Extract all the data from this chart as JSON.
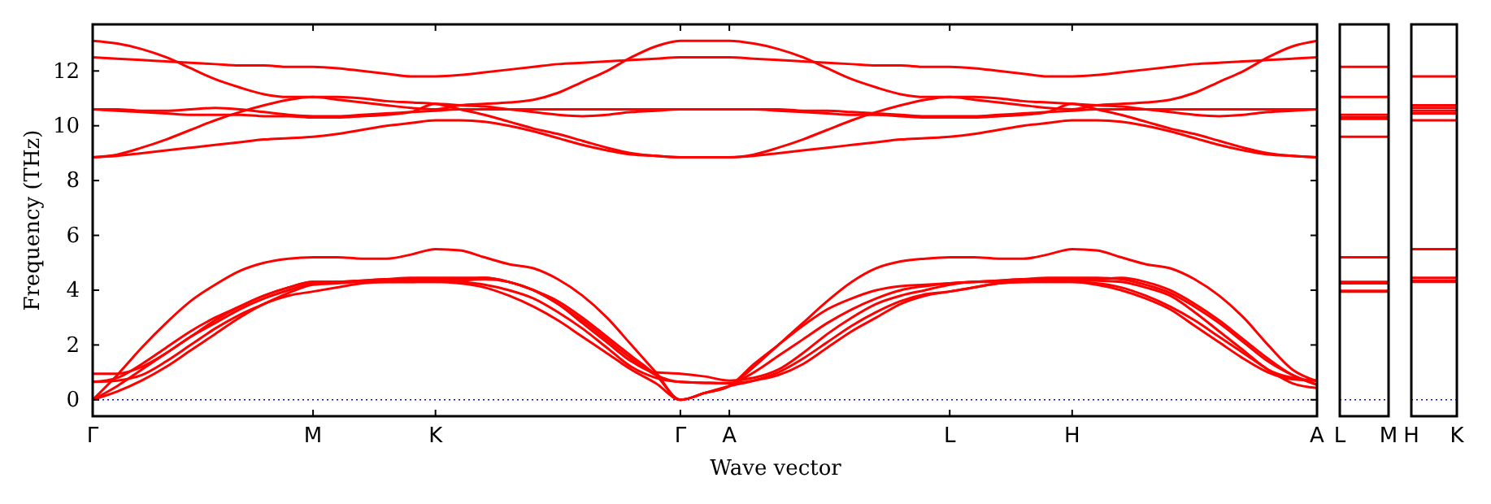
{
  "chart_data": [
    {
      "type": "line",
      "ylabel": "Frequency (THz)",
      "xlabel": "Wave vector",
      "line_style": "solid",
      "grid": false,
      "categories": [
        "Γ",
        null,
        null,
        null,
        null,
        null,
        null,
        null,
        null,
        "M",
        null,
        null,
        null,
        null,
        "K",
        null,
        null,
        null,
        null,
        null,
        null,
        null,
        null,
        null,
        "Γ",
        null,
        "A",
        null,
        null,
        null,
        null,
        null,
        null,
        null,
        null,
        "L",
        null,
        null,
        null,
        null,
        "H",
        null,
        null,
        null,
        null,
        null,
        null,
        null,
        null,
        null,
        "A"
      ],
      "ylim": [
        -0.6,
        13.7
      ],
      "yticks": [
        0,
        2,
        4,
        6,
        8,
        10,
        12
      ],
      "ref_lines": [
        {
          "axis": "y",
          "value": 0,
          "color": "#0000ff",
          "line_style": "dotted"
        }
      ],
      "series": [
        {
          "color": "#ff0000",
          "values": [
            0,
            0.3,
            0.7,
            1.2,
            1.8,
            2.4,
            3.0,
            3.5,
            3.8,
            3.95,
            4.1,
            4.25,
            4.3,
            4.3,
            4.3,
            4.25,
            4.1,
            3.8,
            3.4,
            2.9,
            2.3,
            1.7,
            1.1,
            0.6,
            0,
            0.25,
            0.5,
            1.2,
            2.0,
            2.8,
            3.6,
            4.3,
            4.8,
            5.05,
            5.15,
            5.2,
            5.2,
            5.15,
            5.15,
            5.3,
            5.5,
            5.45,
            5.2,
            4.95,
            4.8,
            4.4,
            3.8,
            3.0,
            2.0,
            1.1,
            0.68
          ]
        },
        {
          "color": "#ff0000",
          "values": [
            0,
            0.5,
            1.1,
            1.7,
            2.3,
            2.8,
            3.3,
            3.7,
            4.0,
            4.25,
            4.3,
            4.35,
            4.4,
            4.4,
            4.4,
            4.4,
            4.45,
            4.3,
            4.0,
            3.5,
            2.9,
            2.2,
            1.5,
            0.9,
            0.65,
            0.62,
            0.6,
            1.0,
            1.6,
            2.2,
            2.8,
            3.3,
            3.7,
            4.0,
            4.15,
            4.25,
            4.3,
            4.35,
            4.4,
            4.45,
            4.45,
            4.45,
            4.4,
            4.2,
            3.9,
            3.4,
            2.8,
            2.1,
            1.4,
            0.9,
            0.55
          ]
        },
        {
          "color": "#ff0000",
          "values": [
            0.65,
            0.8,
            1.3,
            1.9,
            2.5,
            3.0,
            3.4,
            3.8,
            4.1,
            4.3,
            4.3,
            4.35,
            4.4,
            4.45,
            4.45,
            4.45,
            4.45,
            4.3,
            4.0,
            3.6,
            3.0,
            2.3,
            1.6,
            0.9,
            0,
            0.25,
            0.5,
            1.3,
            2.0,
            2.7,
            3.3,
            3.7,
            4.0,
            4.15,
            4.2,
            4.25,
            4.3,
            4.35,
            4.4,
            4.4,
            4.4,
            4.4,
            4.45,
            4.3,
            4.0,
            3.5,
            2.9,
            2.2,
            1.5,
            0.9,
            0.55
          ]
        },
        {
          "color": "#ff0000",
          "values": [
            0.95,
            0.95,
            1.2,
            1.7,
            2.3,
            2.9,
            3.4,
            3.8,
            4.1,
            4.3,
            4.3,
            4.3,
            4.3,
            4.3,
            4.3,
            4.35,
            4.4,
            4.3,
            4.0,
            3.5,
            2.8,
            2.1,
            1.4,
            1.0,
            0.95,
            0.85,
            0.7,
            0.8,
            1.1,
            1.7,
            2.4,
            3.0,
            3.5,
            3.8,
            4.0,
            4.2,
            4.3,
            4.3,
            4.3,
            4.35,
            4.35,
            4.35,
            4.3,
            4.1,
            3.8,
            3.2,
            2.5,
            1.8,
            1.1,
            0.8,
            0.7
          ]
        },
        {
          "color": "#ff0000",
          "values": [
            0.65,
            0.7,
            0.9,
            1.4,
            2.0,
            2.6,
            3.1,
            3.5,
            3.9,
            4.2,
            4.25,
            4.3,
            4.3,
            4.3,
            4.35,
            4.3,
            4.2,
            4.0,
            3.7,
            3.2,
            2.6,
            1.9,
            1.2,
            0.8,
            0.65,
            0.62,
            0.6,
            0.7,
            0.9,
            1.3,
            1.9,
            2.5,
            3.0,
            3.5,
            3.8,
            3.95,
            4.1,
            4.25,
            4.3,
            4.3,
            4.3,
            4.2,
            4.0,
            3.7,
            3.3,
            2.7,
            2.1,
            1.5,
            1.0,
            0.75,
            0.7
          ]
        },
        {
          "color": "#ff0000",
          "values": [
            0,
            0.9,
            1.9,
            2.8,
            3.6,
            4.2,
            4.7,
            5.0,
            5.15,
            5.2,
            5.2,
            5.15,
            5.15,
            5.3,
            5.5,
            5.45,
            5.2,
            4.95,
            4.8,
            4.4,
            3.8,
            3.0,
            2.0,
            1.0,
            0,
            0.25,
            0.5,
            0.7,
            1.0,
            1.5,
            2.1,
            2.7,
            3.2,
            3.6,
            3.85,
            3.95,
            4.1,
            4.25,
            4.3,
            4.3,
            4.3,
            4.25,
            4.1,
            3.8,
            3.4,
            2.9,
            2.3,
            1.7,
            1.1,
            0.6,
            0.43
          ]
        },
        {
          "color": "#ff0000",
          "values": [
            13.1,
            13.0,
            12.8,
            12.5,
            12.1,
            11.7,
            11.4,
            11.15,
            11.05,
            11.05,
            10.95,
            10.85,
            10.75,
            10.65,
            10.6,
            10.75,
            10.8,
            10.85,
            10.95,
            11.2,
            11.6,
            12.0,
            12.5,
            12.9,
            13.1,
            13.1,
            13.1,
            13.0,
            12.8,
            12.5,
            12.1,
            11.7,
            11.4,
            11.15,
            11.05,
            11.05,
            10.95,
            10.85,
            10.75,
            10.65,
            10.6,
            10.75,
            10.8,
            10.85,
            10.95,
            11.2,
            11.6,
            12.0,
            12.5,
            12.9,
            13.1
          ]
        },
        {
          "color": "#ff0000",
          "values": [
            12.5,
            12.45,
            12.4,
            12.35,
            12.3,
            12.25,
            12.2,
            12.2,
            12.15,
            12.15,
            12.1,
            12.0,
            11.9,
            11.8,
            11.8,
            11.85,
            11.95,
            12.05,
            12.15,
            12.25,
            12.3,
            12.35,
            12.4,
            12.45,
            12.5,
            12.5,
            12.5,
            12.45,
            12.4,
            12.35,
            12.3,
            12.25,
            12.2,
            12.2,
            12.15,
            12.15,
            12.1,
            12.0,
            11.9,
            11.8,
            11.8,
            11.85,
            11.95,
            12.05,
            12.15,
            12.25,
            12.3,
            12.35,
            12.4,
            12.45,
            12.5
          ]
        },
        {
          "color": "#ff0000",
          "values": [
            10.6,
            10.6,
            10.55,
            10.55,
            10.6,
            10.65,
            10.6,
            10.5,
            10.4,
            10.35,
            10.35,
            10.4,
            10.45,
            10.5,
            10.55,
            10.6,
            10.6,
            10.6,
            10.6,
            10.6,
            10.6,
            10.6,
            10.6,
            10.6,
            10.6,
            10.6,
            10.6,
            10.6,
            10.6,
            10.55,
            10.55,
            10.5,
            10.45,
            10.4,
            10.35,
            10.35,
            10.35,
            10.4,
            10.45,
            10.5,
            10.55,
            10.6,
            10.6,
            10.6,
            10.6,
            10.6,
            10.6,
            10.6,
            10.6,
            10.6,
            10.6
          ]
        },
        {
          "color": "#ff0000",
          "values": [
            10.6,
            10.55,
            10.5,
            10.45,
            10.4,
            10.4,
            10.4,
            10.35,
            10.35,
            10.3,
            10.3,
            10.35,
            10.4,
            10.5,
            10.8,
            10.75,
            10.7,
            10.6,
            10.5,
            10.4,
            10.35,
            10.4,
            10.5,
            10.55,
            10.6,
            10.6,
            10.6,
            10.6,
            10.55,
            10.5,
            10.45,
            10.4,
            10.4,
            10.35,
            10.3,
            10.3,
            10.3,
            10.35,
            10.4,
            10.5,
            10.8,
            10.6,
            10.4,
            10.15,
            9.9,
            9.7,
            9.45,
            9.2,
            9.0,
            8.9,
            8.85
          ]
        },
        {
          "color": "#ff0000",
          "values": [
            8.85,
            8.95,
            9.2,
            9.5,
            9.85,
            10.2,
            10.5,
            10.75,
            10.95,
            11.05,
            11.05,
            11.0,
            10.9,
            10.85,
            10.8,
            10.6,
            10.4,
            10.15,
            9.9,
            9.7,
            9.45,
            9.2,
            9.0,
            8.9,
            8.85,
            8.85,
            8.85,
            8.95,
            9.2,
            9.5,
            9.85,
            10.2,
            10.5,
            10.75,
            10.95,
            11.05,
            11.05,
            11.0,
            10.9,
            10.85,
            10.8,
            10.75,
            10.7,
            10.6,
            10.5,
            10.4,
            10.35,
            10.4,
            10.5,
            10.55,
            10.6
          ]
        },
        {
          "color": "#ff0000",
          "values": [
            8.85,
            8.9,
            9.0,
            9.1,
            9.2,
            9.3,
            9.4,
            9.5,
            9.55,
            9.6,
            9.7,
            9.85,
            10.0,
            10.1,
            10.2,
            10.2,
            10.15,
            10.0,
            9.8,
            9.55,
            9.3,
            9.1,
            8.95,
            8.9,
            8.85,
            8.85,
            8.85,
            8.9,
            9.0,
            9.1,
            9.2,
            9.3,
            9.4,
            9.5,
            9.55,
            9.6,
            9.7,
            9.85,
            10.0,
            10.1,
            10.2,
            10.2,
            10.15,
            10.0,
            9.8,
            9.55,
            9.3,
            9.1,
            8.95,
            8.9,
            8.85
          ]
        }
      ]
    },
    {
      "type": "line",
      "line_style": "solid",
      "grid": false,
      "tick_labels": "x",
      "categories": [
        "L",
        "M"
      ],
      "ylim": [
        -0.6,
        13.7
      ],
      "yticks": [
        0,
        2,
        4,
        6,
        8,
        10,
        12
      ],
      "ref_lines": [
        {
          "axis": "y",
          "value": 0,
          "color": "#0000ff",
          "line_style": "dotted"
        }
      ],
      "series": [
        {
          "color": "#ff0000",
          "values": [
            12.15,
            12.15
          ]
        },
        {
          "color": "#ff0000",
          "values": [
            11.05,
            11.05
          ]
        },
        {
          "color": "#ff0000",
          "values": [
            10.4,
            10.4
          ]
        },
        {
          "color": "#ff0000",
          "values": [
            10.3,
            10.3
          ]
        },
        {
          "color": "#ff0000",
          "values": [
            10.25,
            10.25
          ]
        },
        {
          "color": "#ff0000",
          "values": [
            9.6,
            9.6
          ]
        },
        {
          "color": "#ff0000",
          "values": [
            5.2,
            5.2
          ]
        },
        {
          "color": "#ff0000",
          "values": [
            4.3,
            4.3
          ]
        },
        {
          "color": "#ff0000",
          "values": [
            4.25,
            4.25
          ]
        },
        {
          "color": "#ff0000",
          "values": [
            3.98,
            3.98
          ]
        },
        {
          "color": "#ff0000",
          "values": [
            3.95,
            3.95
          ]
        }
      ]
    },
    {
      "type": "line",
      "line_style": "solid",
      "grid": false,
      "tick_labels": "x",
      "categories": [
        "H",
        "K"
      ],
      "ylim": [
        -0.6,
        13.7
      ],
      "yticks": [
        0,
        2,
        4,
        6,
        8,
        10,
        12
      ],
      "ref_lines": [
        {
          "axis": "y",
          "value": 0,
          "color": "#0000ff",
          "line_style": "dotted"
        }
      ],
      "series": [
        {
          "color": "#ff0000",
          "values": [
            11.8,
            11.8
          ]
        },
        {
          "color": "#ff0000",
          "values": [
            10.75,
            10.75
          ]
        },
        {
          "color": "#ff0000",
          "values": [
            10.65,
            10.65
          ]
        },
        {
          "color": "#ff0000",
          "values": [
            10.55,
            10.55
          ]
        },
        {
          "color": "#ff0000",
          "values": [
            10.45,
            10.45
          ]
        },
        {
          "color": "#ff0000",
          "values": [
            10.2,
            10.2
          ]
        },
        {
          "color": "#ff0000",
          "values": [
            5.5,
            5.5
          ]
        },
        {
          "color": "#ff0000",
          "values": [
            4.45,
            4.45
          ]
        },
        {
          "color": "#ff0000",
          "values": [
            4.35,
            4.35
          ]
        },
        {
          "color": "#ff0000",
          "values": [
            4.3,
            4.3
          ]
        }
      ]
    }
  ]
}
